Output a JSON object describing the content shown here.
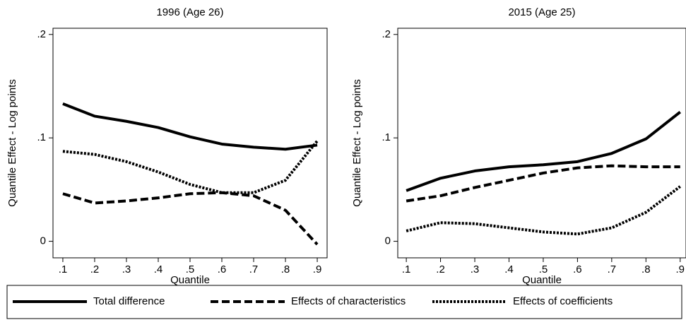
{
  "chart_data": [
    {
      "type": "line",
      "title": "1996 (Age 26)",
      "x_label": "Quantile",
      "y_label": "Quantile Effect - Log points",
      "x": [
        0.1,
        0.2,
        0.3,
        0.4,
        0.5,
        0.6,
        0.7,
        0.8,
        0.9
      ],
      "series": [
        {
          "name": "Total difference",
          "color": "#000000",
          "dash": "solid",
          "values": [
            0.133,
            0.121,
            0.116,
            0.11,
            0.101,
            0.094,
            0.091,
            0.089,
            0.093
          ]
        },
        {
          "name": "Effects of characteristics",
          "color": "#000000",
          "dash": "dashed",
          "values": [
            0.046,
            0.037,
            0.039,
            0.042,
            0.046,
            0.047,
            0.044,
            0.03,
            -0.003
          ]
        },
        {
          "name": "Effects of coefficients",
          "color": "#000000",
          "dash": "dotted",
          "values": [
            0.087,
            0.084,
            0.077,
            0.067,
            0.055,
            0.047,
            0.047,
            0.059,
            0.097
          ]
        }
      ],
      "xlim": [
        0.069,
        0.931
      ],
      "ylim": [
        -0.016,
        0.206
      ],
      "xticks": [
        {
          "value": 0.1,
          "label": ".1"
        },
        {
          "value": 0.2,
          "label": ".2"
        },
        {
          "value": 0.3,
          "label": ".3"
        },
        {
          "value": 0.4,
          "label": ".4"
        },
        {
          "value": 0.5,
          "label": ".5"
        },
        {
          "value": 0.6,
          "label": ".6"
        },
        {
          "value": 0.7,
          "label": ".7"
        },
        {
          "value": 0.8,
          "label": ".8"
        },
        {
          "value": 0.9,
          "label": ".9"
        }
      ],
      "yticks": [
        0,
        {
          "value": 0.1,
          "label": ".1"
        },
        {
          "value": 0.2,
          "label": ".2"
        }
      ],
      "legend": "bottom"
    },
    {
      "type": "line",
      "title": "2015 (Age 25)",
      "x_label": "Quantile",
      "y_label": "Quantile Effect - Log points",
      "x": [
        0.1,
        0.2,
        0.3,
        0.4,
        0.5,
        0.6,
        0.7,
        0.8,
        0.9
      ],
      "series": [
        {
          "name": "Total difference",
          "color": "#000000",
          "dash": "solid",
          "values": [
            0.049,
            0.061,
            0.068,
            0.072,
            0.074,
            0.077,
            0.085,
            0.099,
            0.125
          ]
        },
        {
          "name": "Effects of characteristics",
          "color": "#000000",
          "dash": "dashed",
          "values": [
            0.039,
            0.044,
            0.052,
            0.059,
            0.066,
            0.071,
            0.073,
            0.072,
            0.072
          ]
        },
        {
          "name": "Effects of coefficients",
          "color": "#000000",
          "dash": "dotted",
          "values": [
            0.01,
            0.018,
            0.017,
            0.013,
            0.009,
            0.007,
            0.013,
            0.028,
            0.053
          ]
        }
      ],
      "xlim": [
        0.075,
        0.917
      ],
      "ylim": [
        -0.016,
        0.206
      ],
      "xticks": [
        {
          "value": 0.1,
          "label": ".1"
        },
        {
          "value": 0.2,
          "label": ".2"
        },
        {
          "value": 0.3,
          "label": ".3"
        },
        {
          "value": 0.4,
          "label": ".4"
        },
        {
          "value": 0.5,
          "label": ".5"
        },
        {
          "value": 0.6,
          "label": ".6"
        },
        {
          "value": 0.7,
          "label": ".7"
        },
        {
          "value": 0.8,
          "label": ".8"
        },
        {
          "value": 0.9,
          "label": ".9"
        }
      ],
      "yticks": [
        0,
        {
          "value": 0.1,
          "label": ".1"
        },
        {
          "value": 0.2,
          "label": ".2"
        }
      ]
    }
  ]
}
